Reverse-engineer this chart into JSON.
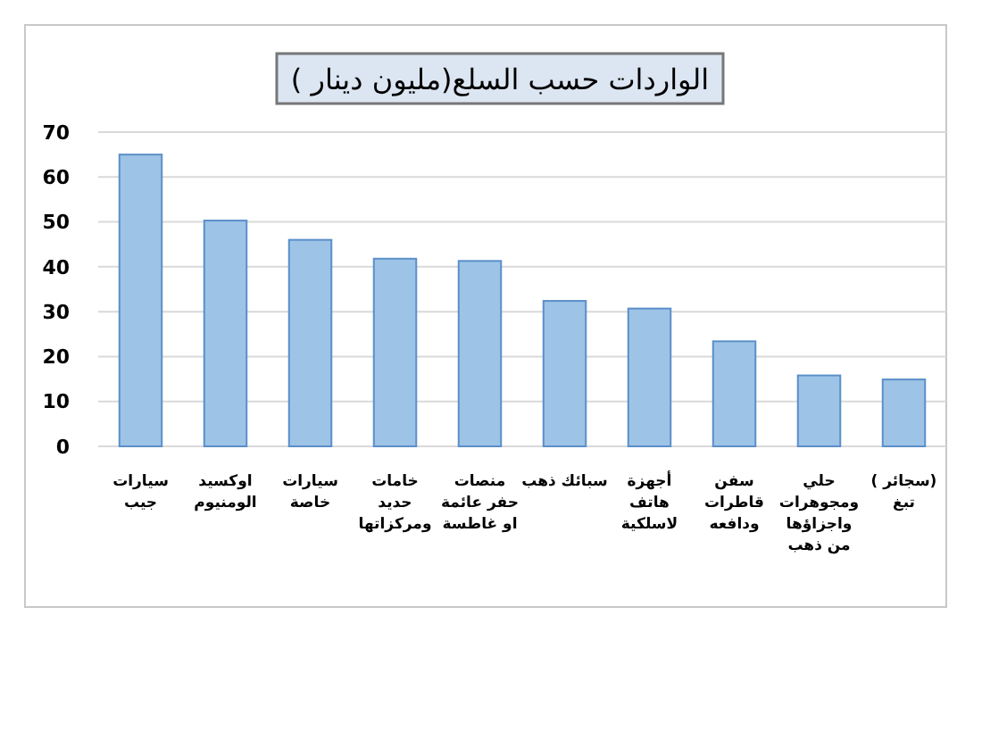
{
  "chart_data": {
    "type": "bar",
    "title": "الواردات حسب السلع(مليون دينار )",
    "categories": [
      "سيارات\nجيب",
      "اوكسيد\nالومنيوم",
      "سيارات\nخاصة",
      "خامات\nحديد\nومركزاتها",
      "منصات\nحفر عائمة\nاو غاطسة",
      "سبائك ذهب",
      "أجهزة\nهاتف\nلاسلكية",
      "سفن\nقاطرات\nودافعه",
      "حلي\nومجوهرات\nواجزاؤها\nمن ذهب",
      "(سجائر )\nتبغ"
    ],
    "values": [
      65,
      50.3,
      46,
      41.8,
      41.3,
      32.4,
      30.7,
      23.4,
      15.8,
      14.9
    ],
    "color": "#9dc3e6",
    "ylim": [
      0,
      70
    ],
    "yticks": [
      0,
      10,
      20,
      30,
      40,
      50,
      60,
      70
    ],
    "grid": "y"
  }
}
